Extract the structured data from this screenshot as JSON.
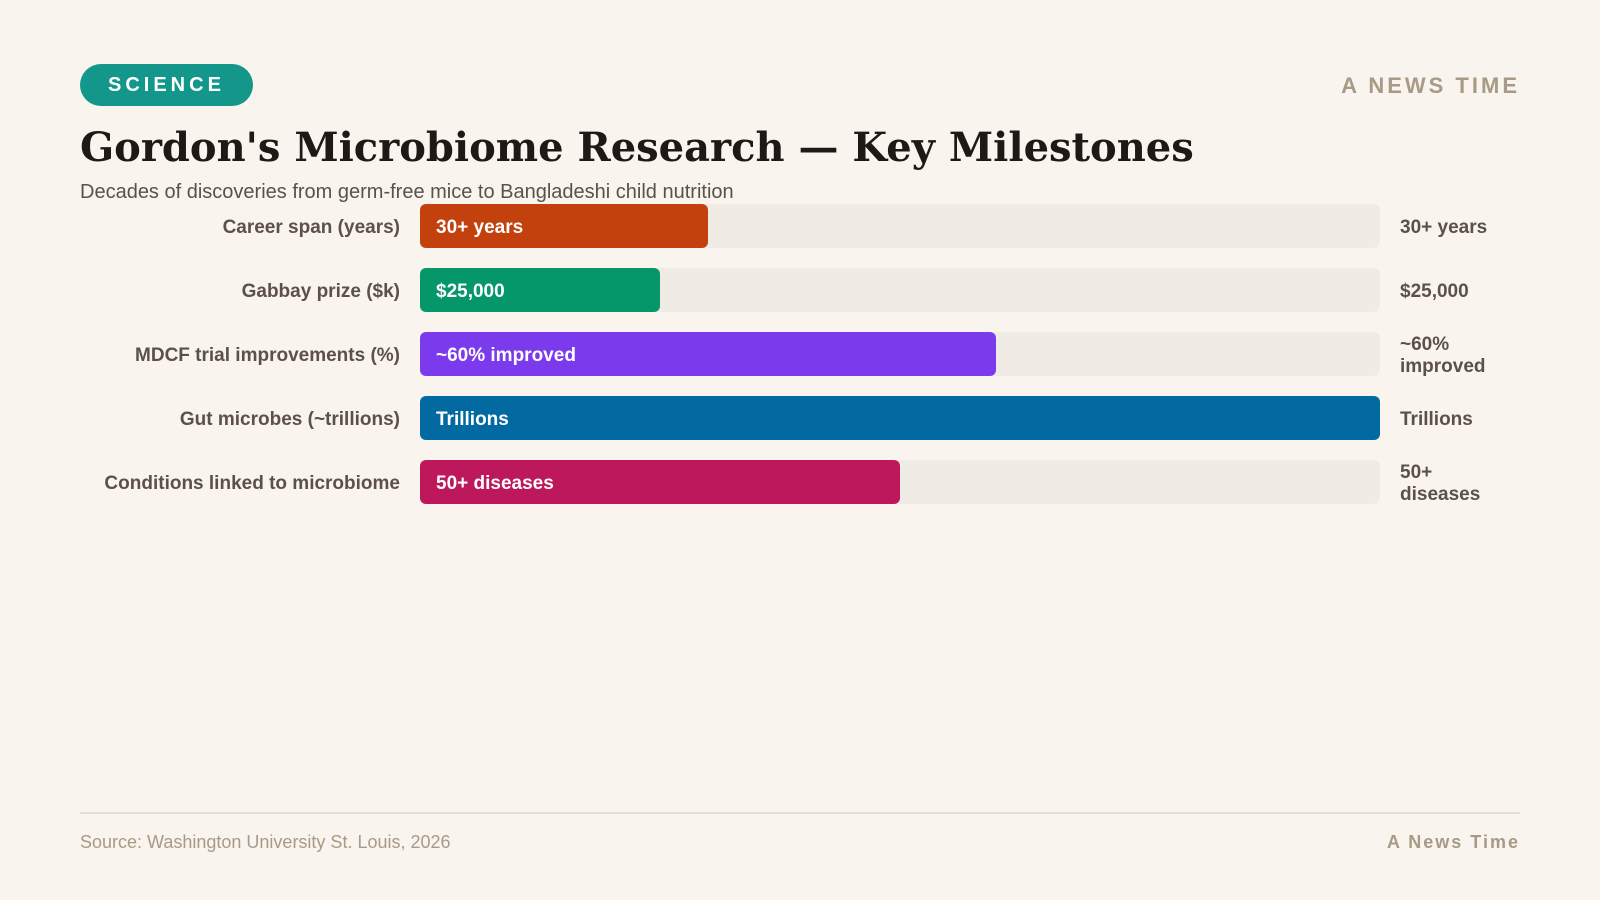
{
  "header": {
    "category": "SCIENCE",
    "brand": "A NEWS TIME",
    "title": "Gordon's Microbiome Research — Key Milestones",
    "subtitle": "Decades of discoveries from germ-free mice to Bangladeshi child nutrition"
  },
  "footer": {
    "source": "Source: Washington University St. Louis, 2026",
    "brand": "A News Time"
  },
  "colors": {
    "background": "#f9f4ee",
    "track": "#f0ebe4",
    "badge": "#13978a",
    "label_text": "#5c5148",
    "value_text": "#5c5148",
    "bar_text": "#ffffff"
  },
  "chart_data": {
    "type": "bar",
    "orientation": "horizontal",
    "categories": [
      "Career span (years)",
      "Gabbay prize ($k)",
      "MDCF trial improvements (%)",
      "Gut microbes (~trillions)",
      "Conditions linked to microbiome"
    ],
    "values": [
      30,
      25,
      60,
      100,
      50
    ],
    "xlim": [
      0,
      100
    ],
    "bar_labels": [
      "30+ years",
      "$25,000",
      "~60% improved",
      "Trillions",
      "50+ diseases"
    ],
    "value_labels": [
      [
        "30+ years"
      ],
      [
        "$25,000"
      ],
      [
        "~60%",
        "improved"
      ],
      [
        "Trillions"
      ],
      [
        "50+",
        "diseases"
      ]
    ],
    "bar_colors": [
      "#c2410c",
      "#059669",
      "#7c3aed",
      "#0369a1",
      "#be185d"
    ],
    "grid": false,
    "legend": "none"
  }
}
